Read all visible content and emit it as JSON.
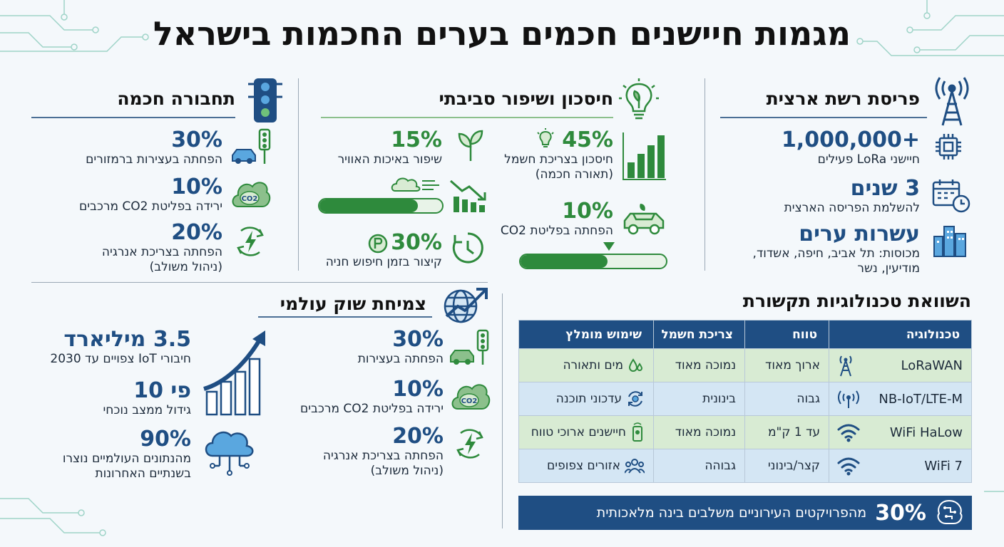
{
  "title": "מגמות חיישנים חכמים בערים החכמות בישראל",
  "colors": {
    "blue": "#1f4e83",
    "green": "#2e8a3c",
    "light_green": "#d8ebd3",
    "light_blue": "#d4e6f4"
  },
  "national": {
    "heading": "פריסת רשת ארצית",
    "icon": "cell-tower-icon",
    "stats": [
      {
        "value": "1,000,000+",
        "label": "חיישני LoRa פעילים",
        "icon": "chip-icon"
      },
      {
        "value": "3 שנים",
        "label": "להשלמת הפריסה הארצית",
        "icon": "calendar-clock-icon"
      },
      {
        "value": "עשרות ערים",
        "label_line1": "מכוסות: תל אביב, חיפה, אשדוד,",
        "label_line2": "מודיעין, נשר",
        "icon": "city-buildings-icon"
      }
    ]
  },
  "savings": {
    "heading": "חיסכון ושיפור סביבתי",
    "icon": "leaf-bulb-icon",
    "energy": {
      "value": "45%",
      "label_line1": "חיסכון בצריכת חשמל",
      "label_line2": "(תאורה חכמה)"
    },
    "air": {
      "value": "15%",
      "label": "שיפור באיכות האוויר",
      "progress": 0.8
    },
    "co2": {
      "value": "10%",
      "label": "הפחתה בפליטת CO2",
      "progress": 0.6
    },
    "parking": {
      "value": "30%",
      "label": "קיצור בזמן חיפוש חניה"
    }
  },
  "transport": {
    "heading": "תחבורה חכמה",
    "icon": "traffic-light-icon",
    "stats": [
      {
        "value": "30%",
        "label": "הפחתה בעצירות ברמזורים",
        "icon": "car-traffic-icon"
      },
      {
        "value": "10%",
        "label": "ירידה בפליטת CO2 מרכבים",
        "icon": "co2-cloud-icon"
      },
      {
        "value": "20%",
        "label_line1": "הפחתה בצריכת אנרגיה",
        "label_line2": "(ניהול משולב)",
        "icon": "energy-bolt-icon"
      }
    ]
  },
  "market": {
    "heading": "צמיחת שוק עולמי",
    "icon": "globe-growth-icon",
    "left": [
      {
        "value": "3.5 מיליארד",
        "label": "חיבורי IoT צפויים עד 2030"
      },
      {
        "value": "פי 10",
        "label": "גידול ממצב נוכחי"
      },
      {
        "value": "90%",
        "label_line1": "מהנתונים העולמיים נוצרו",
        "label_line2": "בשנתיים האחרונות"
      }
    ],
    "right": [
      {
        "value": "30%",
        "label": "הפחתה בעצירות",
        "icon": "car-traffic-icon"
      },
      {
        "value": "10%",
        "label": "ירידה בפליטת CO2 מרכבים",
        "icon": "co2-cloud-icon"
      },
      {
        "value": "20%",
        "label_line1": "הפחתה בצריכת אנרגיה",
        "label_line2": "(ניהול משולב)",
        "icon": "energy-bolt-icon"
      }
    ]
  },
  "comparison": {
    "heading": "השוואת טכנולוגיות תקשורת",
    "columns": [
      "טכנולוגיה",
      "טווח",
      "צריכת חשמל",
      "שימוש מומלץ"
    ],
    "rows": [
      {
        "tech": "LoRaWAN",
        "range": "ארוך מאוד",
        "power": "נמוכה מאוד",
        "use": "מים ותאורה",
        "tech_icon": "antenna-tower-icon",
        "use_icon": "water-drops-icon"
      },
      {
        "tech": "NB-IoT/LTE-M",
        "range": "גבוה",
        "power": "בינונית",
        "use": "עדכוני תוכנה",
        "tech_icon": "broadcast-icon",
        "use_icon": "sync-gear-icon"
      },
      {
        "tech": "WiFi HaLow",
        "range": "עד 1 ק\"מ",
        "power": "נמוכה מאוד",
        "use": "חיישנים ארוכי טווח",
        "tech_icon": "wifi-icon",
        "use_icon": "sensor-icon"
      },
      {
        "tech": "WiFi 7",
        "range": "קצר/בינוני",
        "power": "גבוהה",
        "use": "אזורים צפופים",
        "tech_icon": "wifi-icon",
        "use_icon": "crowd-icon"
      }
    ],
    "banner": {
      "value": "30%",
      "label": "מהפרויקטים העירוניים משלבים בינה מלאכותית",
      "icon": "ai-brain-icon"
    }
  }
}
